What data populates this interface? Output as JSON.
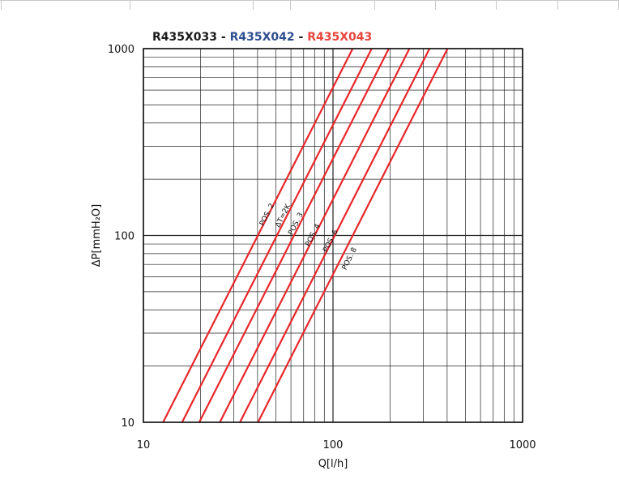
{
  "header_cells": [
    "",
    "",
    "",
    "",
    "",
    "",
    "",
    "",
    ""
  ],
  "chart_data": {
    "type": "line",
    "title_parts": [
      {
        "text": "R435X033",
        "color": "#1a1a1a"
      },
      {
        "text": " - ",
        "color": "#1a1a1a"
      },
      {
        "text": "R435X042",
        "color": "#2f4f8f"
      },
      {
        "text": " - ",
        "color": "#1a1a1a"
      },
      {
        "text": "R435X043",
        "color": "#e8453c"
      }
    ],
    "xlabel": "Q[l/h]",
    "ylabel": "ΔP[mmH₂O]",
    "xscale": "log",
    "yscale": "log",
    "xlim": [
      10,
      1000
    ],
    "ylim": [
      10,
      1000
    ],
    "xticks": [
      10,
      100,
      1000
    ],
    "xtick_labels": [
      "10",
      "100",
      "1000"
    ],
    "yticks": [
      10,
      100,
      1000
    ],
    "ytick_labels": [
      "10",
      "100",
      "1000"
    ],
    "grid": true,
    "line_color": "#e8262b",
    "series": [
      {
        "label": "POS. 2",
        "points": [
          [
            12.7,
            10
          ],
          [
            127,
            1000
          ]
        ]
      },
      {
        "label": "ΔT=2K",
        "points": [
          [
            16.0,
            10
          ],
          [
            160,
            1000
          ]
        ]
      },
      {
        "label": "POS. 3",
        "points": [
          [
            19.7,
            10
          ],
          [
            197,
            1000
          ]
        ]
      },
      {
        "label": "POS. 4",
        "points": [
          [
            25.3,
            10
          ],
          [
            253,
            1000
          ]
        ]
      },
      {
        "label": "POS. 6",
        "points": [
          [
            32.3,
            10
          ],
          [
            323,
            1000
          ]
        ]
      },
      {
        "label": "POS. 8",
        "points": [
          [
            40.2,
            10
          ],
          [
            402,
            1000
          ]
        ]
      }
    ],
    "annotations": [
      {
        "text": "POS. 2",
        "x": 43,
        "y": 112
      },
      {
        "text": "ΔT=2K",
        "x": 52,
        "y": 110
      },
      {
        "text": "POS. 3",
        "x": 61,
        "y": 100
      },
      {
        "text": "POS. 4",
        "x": 75,
        "y": 87
      },
      {
        "text": "POS. 6",
        "x": 93,
        "y": 81
      },
      {
        "text": "POS. 8",
        "x": 117,
        "y": 65
      }
    ]
  }
}
